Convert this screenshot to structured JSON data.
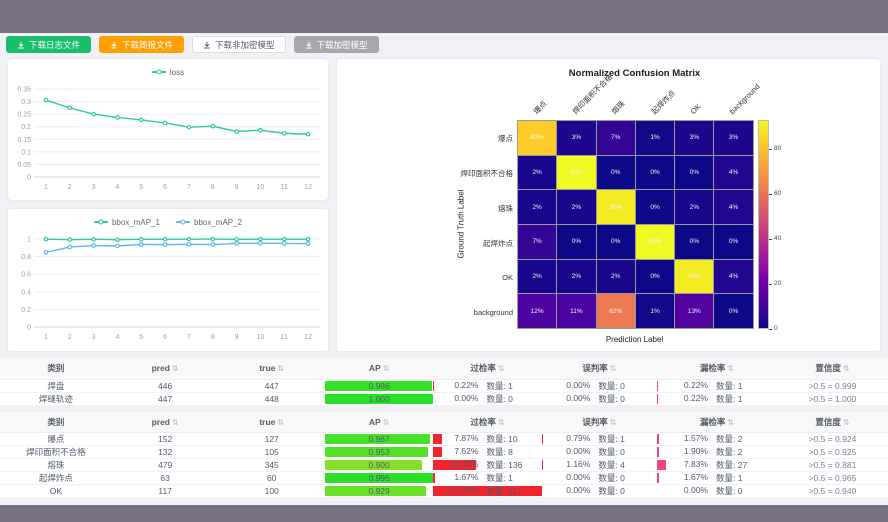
{
  "toolbar": {
    "buttons": [
      {
        "label": "下载日志文件",
        "bg": "#19be6b",
        "fg": "#ffffff",
        "border": "#19be6b"
      },
      {
        "label": "下载简报文件",
        "bg": "#ff9f00",
        "fg": "#ffffff",
        "border": "#ff9f00"
      },
      {
        "label": "下载非加密模型",
        "bg": "#ffffff",
        "fg": "#515a6e",
        "border": "#dcdee2"
      },
      {
        "label": "下载加密模型",
        "bg": "#a6a8ad",
        "fg": "#ffffff",
        "border": "#a6a8ad"
      }
    ]
  },
  "chart_data": [
    {
      "type": "line",
      "title": "loss",
      "x": [
        1,
        2,
        3,
        4,
        5,
        6,
        7,
        8,
        9,
        10,
        11,
        12
      ],
      "series": [
        {
          "name": "loss",
          "color": "#2fc7a7",
          "values": [
            0.306,
            0.275,
            0.25,
            0.237,
            0.227,
            0.215,
            0.198,
            0.202,
            0.181,
            0.186,
            0.174,
            0.17
          ]
        }
      ],
      "ylim": [
        0,
        0.35
      ],
      "yticks": [
        0,
        0.05,
        0.1,
        0.15,
        0.2,
        0.25,
        0.3,
        0.35
      ],
      "legend_position": "top",
      "grid": true
    },
    {
      "type": "line",
      "title": "bbox_mAP",
      "x": [
        1,
        2,
        3,
        4,
        5,
        6,
        7,
        8,
        9,
        10,
        11,
        12
      ],
      "series": [
        {
          "name": "bbox_mAP_1",
          "color": "#2fc7a7",
          "values": [
            0.998,
            0.992,
            0.996,
            0.992,
            0.997,
            0.998,
            0.998,
            0.999,
            0.997,
            0.998,
            0.998,
            0.998
          ]
        },
        {
          "name": "bbox_mAP_2",
          "color": "#5fb4f0",
          "values": [
            0.848,
            0.908,
            0.925,
            0.922,
            0.938,
            0.936,
            0.94,
            0.937,
            0.95,
            0.952,
            0.95,
            0.948
          ]
        }
      ],
      "ylim": [
        0,
        1
      ],
      "yticks": [
        0,
        0.2,
        0.4,
        0.6,
        0.8,
        1
      ],
      "legend_position": "top",
      "grid": true
    },
    {
      "type": "heatmap",
      "title": "Normalized Confusion Matrix",
      "xlabel": "Prediction Label",
      "ylabel": "Ground Truth Label",
      "categories": [
        "爆点",
        "焊印面积不合格",
        "熔珠",
        "起焊炸点",
        "OK",
        "background"
      ],
      "values_percent": [
        [
          83,
          3,
          7,
          1,
          3,
          3
        ],
        [
          2,
          93,
          0,
          0,
          0,
          4
        ],
        [
          2,
          2,
          90,
          0,
          2,
          4
        ],
        [
          7,
          0,
          0,
          93,
          0,
          0
        ],
        [
          2,
          2,
          2,
          0,
          90,
          4
        ],
        [
          12,
          11,
          62,
          1,
          13,
          0
        ]
      ],
      "colormap": "plasma",
      "vmin": 0,
      "vmax": 93,
      "colorbar_ticks": [
        0,
        20,
        40,
        60,
        80
      ]
    }
  ],
  "tables": {
    "count_label": "数量",
    "headers": [
      "类别",
      "pred",
      "true",
      "AP",
      "过检率",
      "误判率",
      "漏检率",
      "置信度"
    ],
    "sortable": [
      false,
      true,
      true,
      true,
      true,
      true,
      true,
      true
    ],
    "bar_colors": {
      "ap_high": "#2ed93d",
      "over": "#f5232e",
      "mis": "#f5232e",
      "miss": "#f0447c"
    },
    "groups": [
      {
        "rows": [
          {
            "name": "焊盘",
            "pred": "446",
            "true": "447",
            "ap": "0.986",
            "over": "0.22%",
            "over_n": "1",
            "mis": "0.00%",
            "mis_n": "0",
            "miss": "0.22%",
            "miss_n": "1",
            "conf": ">0.5 = 0.999"
          },
          {
            "name": "焊缝轨迹",
            "pred": "447",
            "true": "448",
            "ap": "1.000",
            "over": "0.00%",
            "over_n": "0",
            "mis": "0.00%",
            "mis_n": "0",
            "miss": "0.22%",
            "miss_n": "1",
            "conf": ">0.5 = 1.000"
          }
        ]
      },
      {
        "rows": [
          {
            "name": "爆点",
            "pred": "152",
            "true": "127",
            "ap": "0.967",
            "over": "7.87%",
            "over_n": "10",
            "mis": "0.79%",
            "mis_n": "1",
            "miss": "1.57%",
            "miss_n": "2",
            "conf": ">0.5 = 0.924"
          },
          {
            "name": "焊印面积不合格",
            "pred": "132",
            "true": "105",
            "ap": "0.953",
            "over": "7.62%",
            "over_n": "8",
            "mis": "0.00%",
            "mis_n": "0",
            "miss": "1.90%",
            "miss_n": "2",
            "conf": ">0.5 = 0.925"
          },
          {
            "name": "熔珠",
            "pred": "479",
            "true": "345",
            "ap": "0.900",
            "over": "39.42%",
            "over_n": "136",
            "mis": "1.16%",
            "mis_n": "4",
            "miss": "7.83%",
            "miss_n": "27",
            "conf": ">0.5 = 0.881"
          },
          {
            "name": "起焊炸点",
            "pred": "63",
            "true": "60",
            "ap": "0.996",
            "over": "1.67%",
            "over_n": "1",
            "mis": "0.00%",
            "mis_n": "0",
            "miss": "1.67%",
            "miss_n": "1",
            "conf": ">0.5 = 0.965"
          },
          {
            "name": "OK",
            "pred": "117",
            "true": "100",
            "ap": "0.929",
            "over": "117.00%",
            "over_n": "117",
            "mis": "0.00%",
            "mis_n": "0",
            "miss": "0.00%",
            "miss_n": "0",
            "conf": ">0.5 = 0.940"
          }
        ]
      }
    ]
  }
}
